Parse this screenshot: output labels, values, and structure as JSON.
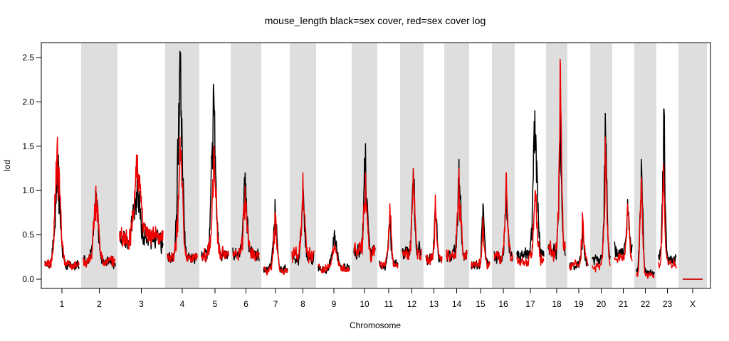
{
  "chart_data": {
    "type": "line",
    "title": "mouse_length black=sex cover, red=sex cover log",
    "xlabel": "Chromosome",
    "ylabel": "lod",
    "ylim": [
      0,
      2.5
    ],
    "yticks": [
      "0.0",
      "0.5",
      "1.0",
      "1.5",
      "2.0",
      "2.5"
    ],
    "chromosomes": [
      "1",
      "2",
      "3",
      "4",
      "5",
      "6",
      "7",
      "8",
      "9",
      "10",
      "11",
      "12",
      "13",
      "14",
      "15",
      "16",
      "17",
      "18",
      "19",
      "20",
      "21",
      "22",
      "23",
      "X"
    ],
    "alternating_shading": true,
    "shade_color": "#dedede",
    "series": [
      {
        "color": "#000000",
        "peaks": [
          {
            "chr": "1",
            "base": 0.2,
            "max": 1.4
          },
          {
            "chr": "2",
            "base": 0.25,
            "max": 1.0
          },
          {
            "chr": "3",
            "base": 0.55,
            "max": 1.2
          },
          {
            "chr": "4",
            "base": 0.3,
            "max": 2.57
          },
          {
            "chr": "5",
            "base": 0.35,
            "max": 2.2
          },
          {
            "chr": "6",
            "base": 0.35,
            "max": 1.2
          },
          {
            "chr": "7",
            "base": 0.15,
            "max": 0.9
          },
          {
            "chr": "8",
            "base": 0.3,
            "max": 1.05
          },
          {
            "chr": "9",
            "base": 0.15,
            "max": 0.55
          },
          {
            "chr": "10",
            "base": 0.4,
            "max": 1.53
          },
          {
            "chr": "11",
            "base": 0.2,
            "max": 0.7
          },
          {
            "chr": "12",
            "base": 0.4,
            "max": 1.25
          },
          {
            "chr": "13",
            "base": 0.3,
            "max": 0.85
          },
          {
            "chr": "14",
            "base": 0.35,
            "max": 1.35
          },
          {
            "chr": "15",
            "base": 0.2,
            "max": 0.85
          },
          {
            "chr": "16",
            "base": 0.3,
            "max": 1.1
          },
          {
            "chr": "17",
            "base": 0.35,
            "max": 1.9
          },
          {
            "chr": "18",
            "base": 0.4,
            "max": 1.85
          },
          {
            "chr": "19",
            "base": 0.2,
            "max": 0.6
          },
          {
            "chr": "20",
            "base": 0.3,
            "max": 1.87
          },
          {
            "chr": "21",
            "base": 0.4,
            "max": 0.9
          },
          {
            "chr": "22",
            "base": 0.1,
            "max": 1.35
          },
          {
            "chr": "23",
            "base": 0.3,
            "max": 1.92
          },
          {
            "chr": "X",
            "base": 0.0,
            "max": 0.0
          }
        ]
      },
      {
        "color": "#ee0000",
        "peaks": [
          {
            "chr": "1",
            "base": 0.2,
            "max": 1.6
          },
          {
            "chr": "2",
            "base": 0.25,
            "max": 1.05
          },
          {
            "chr": "3",
            "base": 0.6,
            "max": 1.4
          },
          {
            "chr": "4",
            "base": 0.3,
            "max": 1.6
          },
          {
            "chr": "5",
            "base": 0.35,
            "max": 1.5
          },
          {
            "chr": "6",
            "base": 0.35,
            "max": 1.05
          },
          {
            "chr": "7",
            "base": 0.12,
            "max": 0.75
          },
          {
            "chr": "8",
            "base": 0.35,
            "max": 1.2
          },
          {
            "chr": "9",
            "base": 0.15,
            "max": 0.4
          },
          {
            "chr": "10",
            "base": 0.4,
            "max": 1.2
          },
          {
            "chr": "11",
            "base": 0.2,
            "max": 0.85
          },
          {
            "chr": "12",
            "base": 0.35,
            "max": 1.25
          },
          {
            "chr": "13",
            "base": 0.3,
            "max": 0.95
          },
          {
            "chr": "14",
            "base": 0.35,
            "max": 1.25
          },
          {
            "chr": "15",
            "base": 0.2,
            "max": 0.7
          },
          {
            "chr": "16",
            "base": 0.3,
            "max": 1.2
          },
          {
            "chr": "17",
            "base": 0.25,
            "max": 1.0
          },
          {
            "chr": "18",
            "base": 0.4,
            "max": 2.48
          },
          {
            "chr": "19",
            "base": 0.2,
            "max": 0.75
          },
          {
            "chr": "20",
            "base": 0.2,
            "max": 1.6
          },
          {
            "chr": "21",
            "base": 0.3,
            "max": 0.85
          },
          {
            "chr": "22",
            "base": 0.05,
            "max": 1.15
          },
          {
            "chr": "23",
            "base": 0.2,
            "max": 1.3
          },
          {
            "chr": "X",
            "base": 0.0,
            "max": 0.0
          }
        ]
      }
    ]
  }
}
